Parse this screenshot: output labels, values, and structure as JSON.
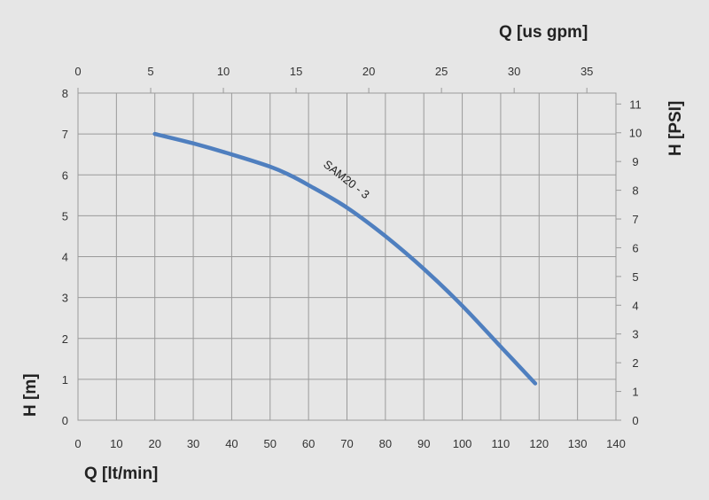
{
  "chart_data": {
    "type": "line",
    "x_bottom": {
      "label": "Q [lt/min]",
      "range": [
        0,
        140
      ],
      "ticks": [
        "0",
        "10",
        "20",
        "30",
        "40",
        "50",
        "60",
        "70",
        "80",
        "90",
        "100",
        "110",
        "120",
        "130",
        "140"
      ]
    },
    "x_top": {
      "label": "Q [us gpm]",
      "range": [
        0,
        37
      ],
      "ticks": [
        "0",
        "5",
        "10",
        "15",
        "20",
        "25",
        "30",
        "35"
      ]
    },
    "y_left": {
      "label": "H [m]",
      "range": [
        0,
        8
      ],
      "ticks": [
        "0",
        "1",
        "2",
        "3",
        "4",
        "5",
        "6",
        "7",
        "8"
      ]
    },
    "y_right": {
      "label": "H [PSI]",
      "range": [
        0,
        11.38
      ],
      "ticks": [
        "0",
        "1",
        "2",
        "3",
        "4",
        "5",
        "6",
        "7",
        "8",
        "9",
        "10",
        "11"
      ]
    },
    "grid": true,
    "series": [
      {
        "name": "SAM20 - 3",
        "color": "#4f7fbf",
        "x": [
          20,
          30,
          40,
          50,
          55,
          60,
          70,
          80,
          90,
          100,
          110,
          119
        ],
        "y": [
          7.0,
          6.77,
          6.5,
          6.2,
          6.0,
          5.75,
          5.2,
          4.5,
          3.7,
          2.8,
          1.8,
          0.9
        ]
      }
    ]
  }
}
